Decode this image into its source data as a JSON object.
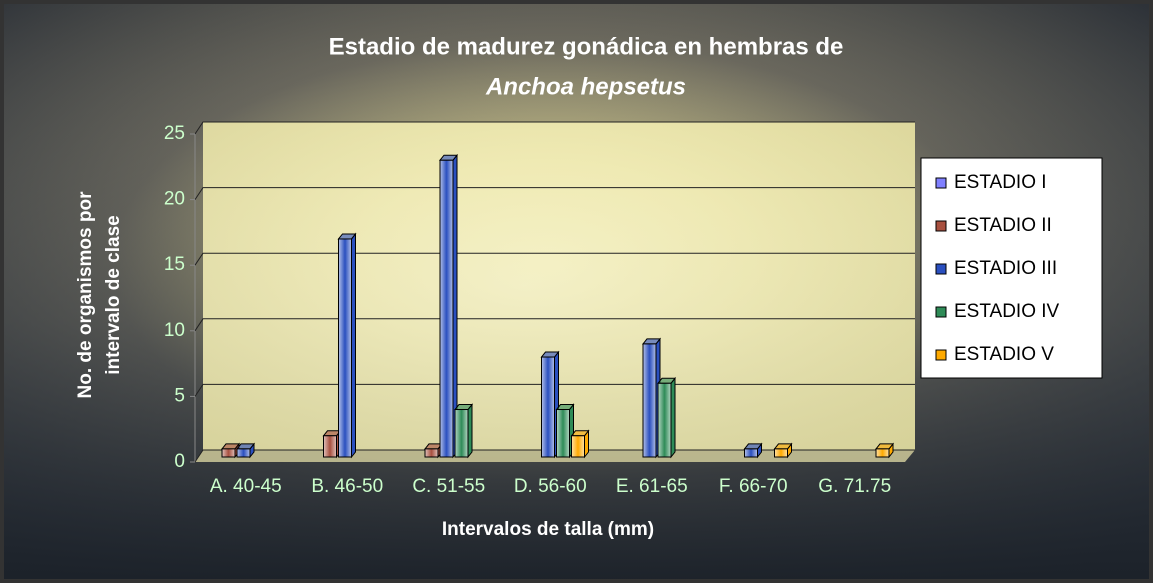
{
  "chart_data": {
    "type": "bar3d",
    "title": "Estadio de madurez gonádica en hembras de",
    "subtitle": "Anchoa hepsetus",
    "xlabel": "Intervalos de talla (mm)",
    "ylabel": [
      "No. de organismos por",
      "intervalo de clase"
    ],
    "categories": [
      "A. 40-45",
      "B. 46-50",
      "C. 51-55",
      "D. 56-60",
      "E. 61-65",
      "F. 66-70",
      "G. 71.75"
    ],
    "series": [
      {
        "name": "ESTADIO I",
        "color": "#8080ff",
        "values": [
          0,
          0,
          0,
          0,
          0,
          0,
          0
        ]
      },
      {
        "name": "ESTADIO II",
        "color": "#a8503f",
        "values": [
          1,
          2,
          1,
          0,
          0,
          0,
          0
        ]
      },
      {
        "name": "ESTADIO III",
        "color": "#2a4fbf",
        "values": [
          1,
          17,
          23,
          8,
          9,
          1,
          0
        ]
      },
      {
        "name": "ESTADIO IV",
        "color": "#2e8b57",
        "values": [
          0,
          0,
          4,
          4,
          6,
          0,
          0
        ]
      },
      {
        "name": "ESTADIO V",
        "color": "#ffaa00",
        "values": [
          0,
          0,
          0,
          2,
          0,
          1,
          1
        ]
      }
    ],
    "ylim": [
      0,
      25
    ],
    "yticks": [
      0,
      5,
      10,
      15,
      20,
      25
    ],
    "grid": true
  }
}
